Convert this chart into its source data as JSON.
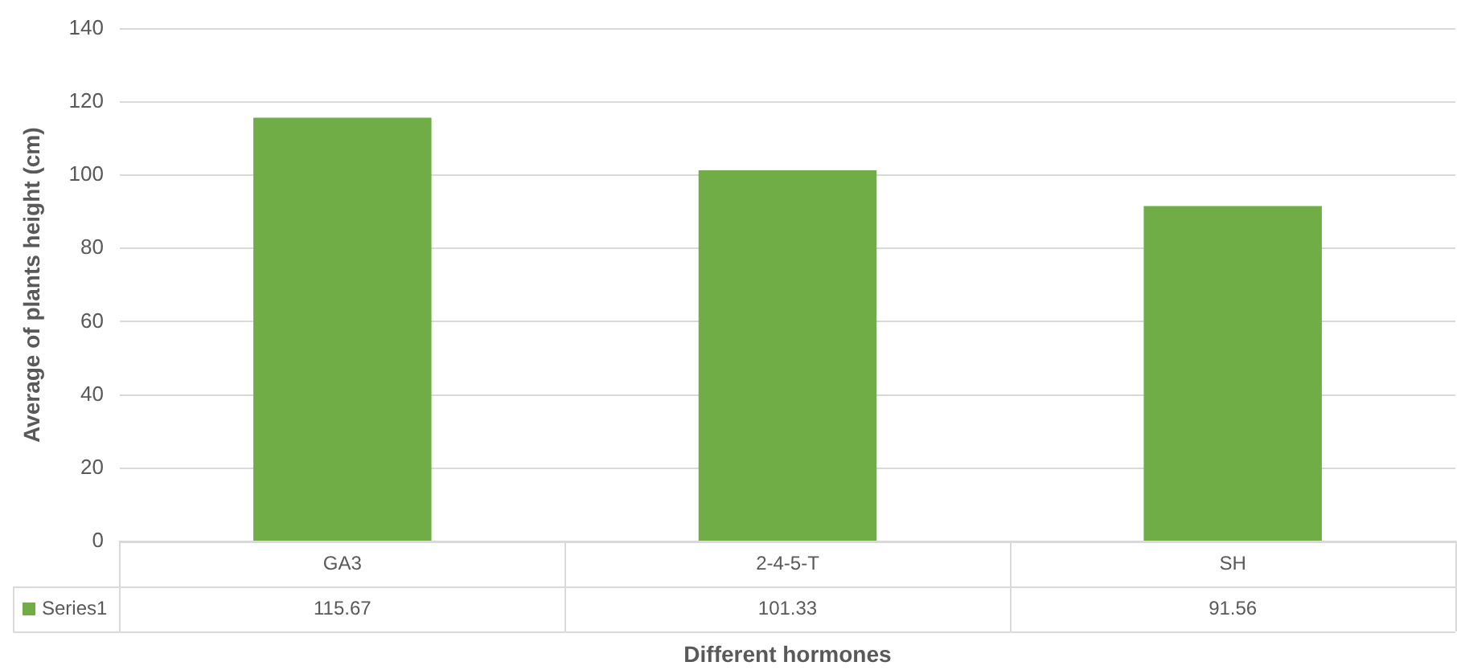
{
  "chart_data": {
    "type": "bar",
    "xlabel": "Different hormones",
    "ylabel": "Average of plants height (cm)",
    "categories": [
      "GA3",
      "2-4-5-T",
      "SH"
    ],
    "series": [
      {
        "name": "Series1",
        "color": "#70ad47",
        "values": [
          115.67,
          101.33,
          91.56
        ]
      }
    ],
    "ylim": [
      0,
      140
    ],
    "yticks": [
      0,
      20,
      40,
      60,
      80,
      100,
      120,
      140
    ],
    "grid": "y",
    "data_labels": true,
    "legend": "bottom"
  }
}
